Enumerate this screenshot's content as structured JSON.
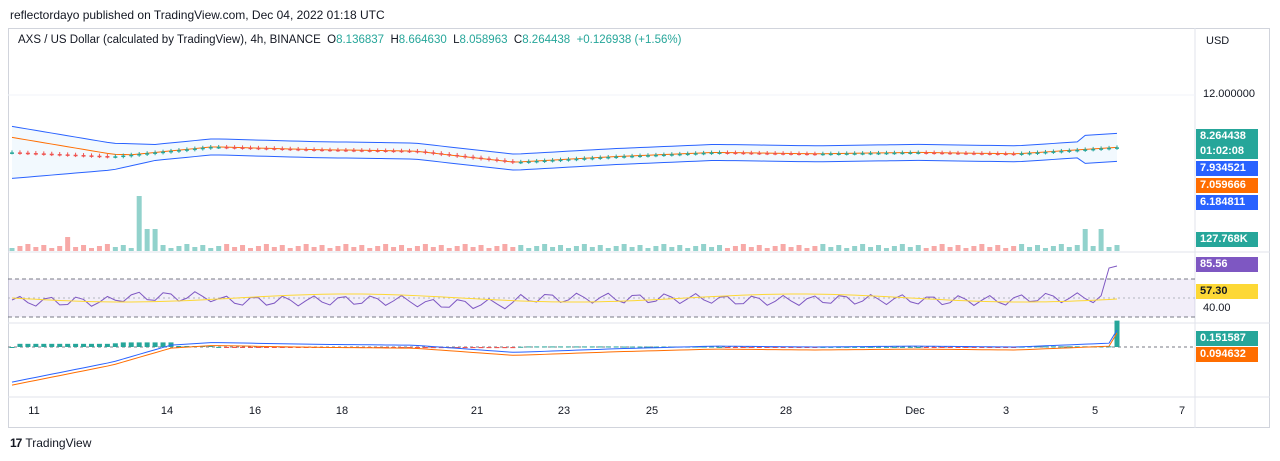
{
  "header": {
    "published": "reflectordayo published on TradingView.com, Dec 04, 2022 01:18 UTC"
  },
  "legend": {
    "symbol": "AXS / US Dollar (calculated by TradingView), 4h, BINANCE",
    "o_label": "O",
    "o_value": "8.136837",
    "h_label": "H",
    "h_value": "8.664630",
    "l_label": "L",
    "l_value": "8.058963",
    "c_label": "C",
    "c_value": "8.264438",
    "change": "+0.126938 (+1.56%)"
  },
  "axis": {
    "currency": "USD",
    "price_tick": "12.000000",
    "rsi_tick": "40.00",
    "x_ticks": [
      "11",
      "14",
      "16",
      "18",
      "21",
      "23",
      "25",
      "28",
      "Dec",
      "3",
      "5",
      "7"
    ]
  },
  "tags": {
    "last_price": "8.264438",
    "countdown": "01:02:08",
    "bb_upper": "7.934521",
    "ma": "7.059666",
    "bb_lower": "6.184811",
    "volume": "127.768K",
    "rsi": "85.56",
    "rsi_ma": "57.30",
    "macd": "0.151587",
    "signal": "0.094632"
  },
  "colors": {
    "up": "#26a69a",
    "down": "#ef5350",
    "bb": "#2962ff",
    "ma": "#ff6d00",
    "rsi": "#7e57c2",
    "rsi_ma": "#fdd835"
  },
  "footer": {
    "logo_text": "TradingView"
  },
  "chart_data": {
    "type": "candlestick",
    "panes": [
      "price with Bollinger Bands",
      "volume",
      "RSI",
      "MACD"
    ],
    "x_range": [
      "Nov 11",
      "Dec 7"
    ],
    "close_approx": [
      {
        "date": "Nov 11",
        "close": 7.9
      },
      {
        "date": "Nov 13",
        "close": 7.6
      },
      {
        "date": "Nov 14",
        "close": 8.3
      },
      {
        "date": "Nov 16",
        "close": 8.1
      },
      {
        "date": "Nov 18",
        "close": 8.0
      },
      {
        "date": "Nov 21",
        "close": 7.2
      },
      {
        "date": "Nov 23",
        "close": 7.6
      },
      {
        "date": "Nov 25",
        "close": 7.9
      },
      {
        "date": "Nov 28",
        "close": 7.8
      },
      {
        "date": "Dec 1",
        "close": 7.9
      },
      {
        "date": "Dec 3",
        "close": 7.8
      },
      {
        "date": "Dec 4",
        "close": 8.26
      }
    ],
    "rsi_last": 85.56,
    "rsi_ma_last": 57.3,
    "macd_last": 0.151587,
    "signal_last": 0.094632
  }
}
